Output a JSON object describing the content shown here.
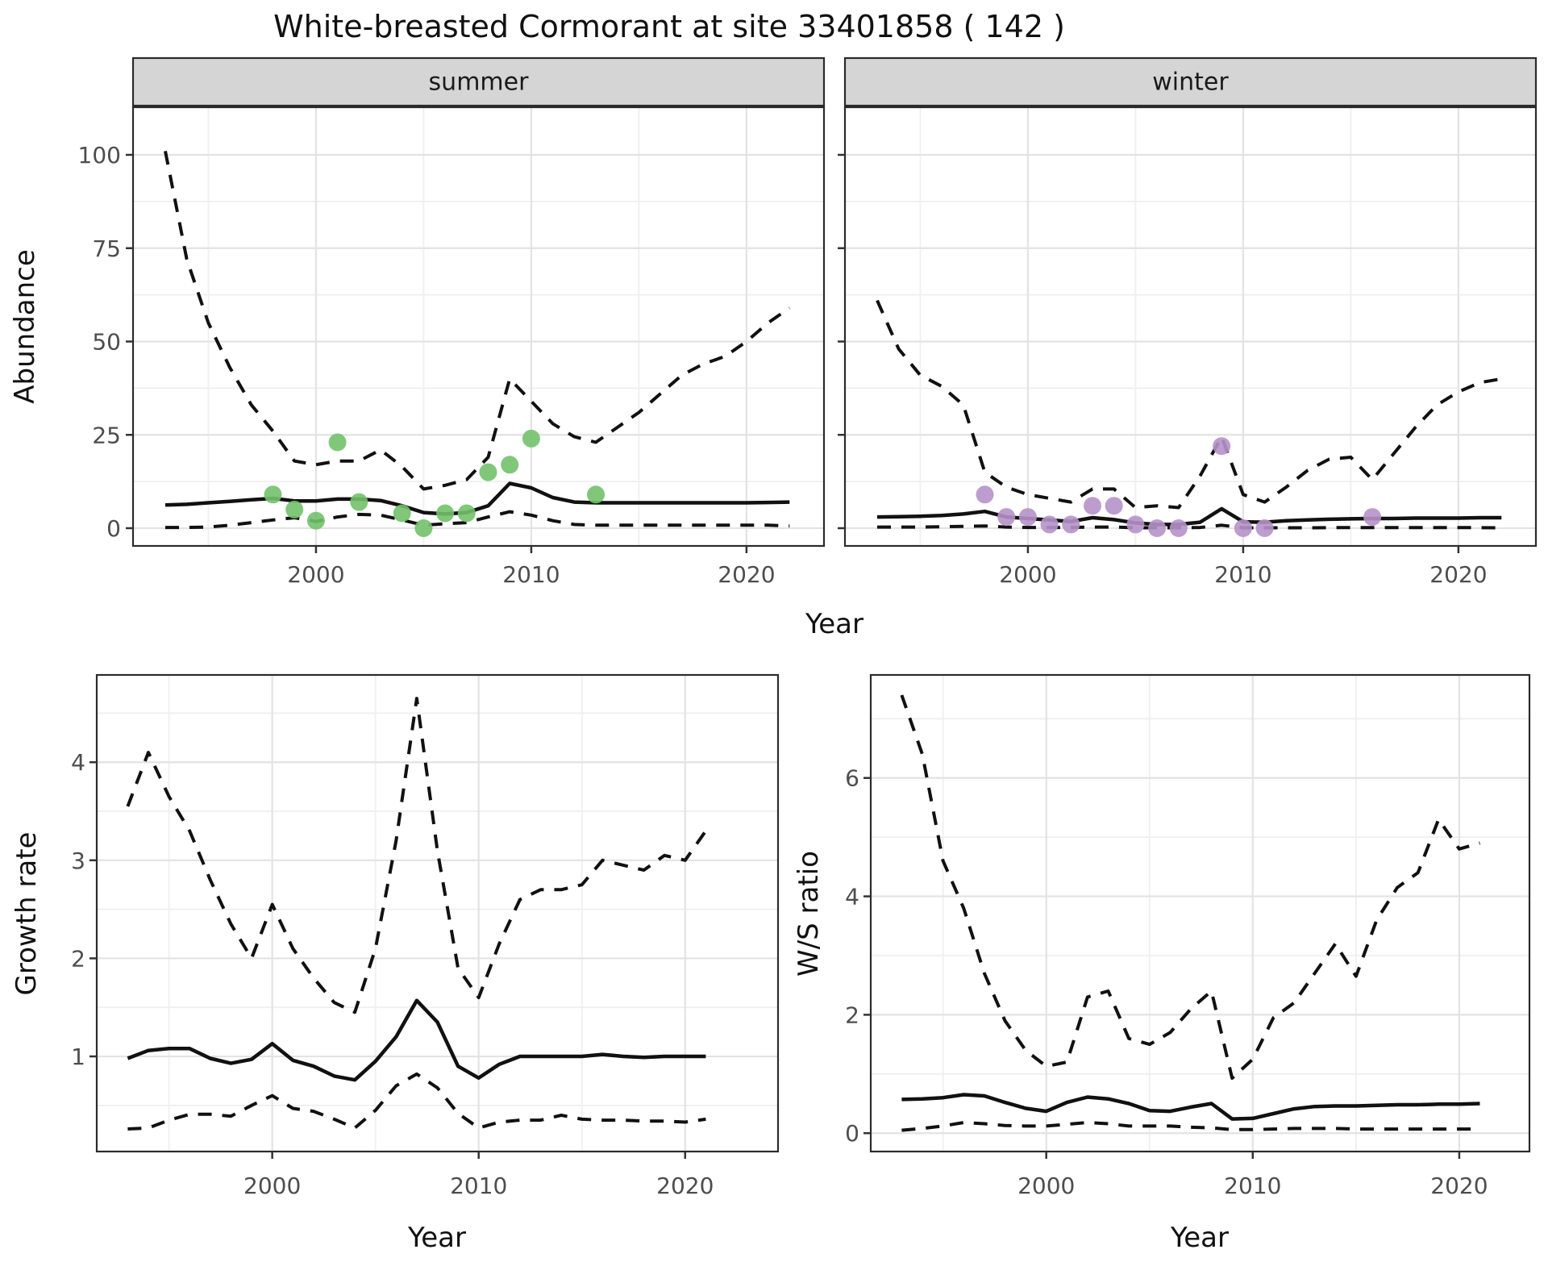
{
  "title": "White-breasted Cormorant at site 33401858 ( 142 )",
  "colors": {
    "summer_point": "#72c16c",
    "winter_point": "#b592c9",
    "line": "#111111",
    "strip_bg": "#d5d5d5",
    "panel_border": "#2b2b2b",
    "grid_major": "#e3e3e3",
    "grid_minor": "#efefef",
    "tick_text": "#4d4d4d"
  },
  "axis_titles": [
    {
      "id": "abundance",
      "text": "Abundance"
    },
    {
      "id": "year-top",
      "text": "Year"
    },
    {
      "id": "growth-rate",
      "text": "Growth rate"
    },
    {
      "id": "year-bottom-left",
      "text": "Year"
    },
    {
      "id": "ws-ratio",
      "text": "W/S ratio"
    },
    {
      "id": "year-bottom-right",
      "text": "Year"
    }
  ],
  "chart_data": [
    {
      "id": "abundance-summer",
      "type": "line",
      "facet_label": "summer",
      "ylabel": "Abundance",
      "xlabel": "Year",
      "x_ticks": [
        2000,
        2010,
        2020
      ],
      "x_minor": [
        1995,
        2005,
        2015
      ],
      "y_ticks": [
        0,
        25,
        50,
        75,
        100
      ],
      "y_minor": [
        12.5,
        37.5,
        62.5,
        87.5
      ],
      "xlim": [
        1991.5,
        2023.6
      ],
      "ylim": [
        -4.75,
        112.75
      ],
      "grid": true,
      "legend": "none",
      "x": [
        1993,
        1994,
        1995,
        1996,
        1997,
        1998,
        1999,
        2000,
        2001,
        2002,
        2003,
        2004,
        2005,
        2006,
        2007,
        2008,
        2009,
        2010,
        2011,
        2012,
        2013,
        2014,
        2015,
        2016,
        2017,
        2018,
        2019,
        2020,
        2021,
        2022
      ],
      "series": [
        {
          "name": "upper-ci",
          "style": "dashed",
          "values": [
            101,
            72,
            55,
            43,
            33,
            26,
            18,
            17,
            18,
            18,
            21,
            16.5,
            10.5,
            11.5,
            13,
            19,
            40,
            34,
            28,
            24.5,
            23,
            27,
            31,
            36,
            41,
            44,
            46,
            50,
            55,
            59
          ]
        },
        {
          "name": "median",
          "style": "solid",
          "values": [
            6.2,
            6.4,
            6.8,
            7.2,
            7.6,
            8,
            7.3,
            7.3,
            7.8,
            7.8,
            7.4,
            6,
            4.2,
            3.8,
            4.2,
            6,
            12,
            10.8,
            8.2,
            7,
            6.8,
            6.8,
            6.8,
            6.8,
            6.8,
            6.8,
            6.8,
            6.8,
            6.9,
            7
          ]
        },
        {
          "name": "lower-ci",
          "style": "dashed",
          "values": [
            0.2,
            0.2,
            0.3,
            0.8,
            1.5,
            2.2,
            2.8,
            1.8,
            3,
            3.7,
            3.5,
            2.2,
            0.8,
            1.2,
            1.5,
            3,
            4.4,
            3.5,
            2,
            1,
            0.8,
            0.8,
            0.8,
            0.8,
            0.8,
            0.8,
            0.8,
            0.8,
            0.8,
            0.6
          ]
        }
      ],
      "points": {
        "color_key": "summer_point",
        "data": [
          [
            1998,
            9
          ],
          [
            1999,
            5
          ],
          [
            2000,
            2
          ],
          [
            2001,
            23
          ],
          [
            2002,
            7
          ],
          [
            2004,
            4
          ],
          [
            2005,
            0
          ],
          [
            2006,
            4
          ],
          [
            2007,
            4
          ],
          [
            2008,
            15
          ],
          [
            2009,
            17
          ],
          [
            2010,
            24
          ],
          [
            2013,
            9
          ]
        ]
      }
    },
    {
      "id": "abundance-winter",
      "type": "line",
      "facet_label": "winter",
      "ylabel": "Abundance",
      "xlabel": "Year",
      "x_ticks": [
        2000,
        2010,
        2020
      ],
      "x_minor": [
        1995,
        2005,
        2015
      ],
      "y_ticks": [
        0,
        25,
        50,
        75,
        100
      ],
      "y_minor": [
        12.5,
        37.5,
        62.5,
        87.5
      ],
      "xlim": [
        1991.5,
        2023.6
      ],
      "ylim": [
        -4.75,
        112.75
      ],
      "grid": true,
      "legend": "none",
      "x": [
        1993,
        1994,
        1995,
        1996,
        1997,
        1998,
        1999,
        2000,
        2001,
        2002,
        2003,
        2004,
        2005,
        2006,
        2007,
        2008,
        2009,
        2010,
        2011,
        2012,
        2013,
        2014,
        2015,
        2016,
        2017,
        2018,
        2019,
        2020,
        2021,
        2022
      ],
      "series": [
        {
          "name": "upper-ci",
          "style": "dashed",
          "values": [
            61,
            48,
            41,
            38,
            33,
            15,
            11,
            9,
            8,
            7,
            10.5,
            10.5,
            5.5,
            6,
            5.5,
            14,
            24.5,
            9,
            7,
            11,
            15.5,
            18.5,
            19,
            13,
            20,
            27,
            33,
            36.5,
            39,
            40
          ]
        },
        {
          "name": "median",
          "style": "solid",
          "values": [
            3,
            3.1,
            3.2,
            3.4,
            3.8,
            4.5,
            3,
            2.6,
            2.2,
            1.8,
            2.8,
            2.3,
            1.4,
            1,
            1,
            1.6,
            5.2,
            1.7,
            1.6,
            2,
            2.2,
            2.4,
            2.5,
            2.6,
            2.6,
            2.7,
            2.7,
            2.7,
            2.8,
            2.8
          ]
        },
        {
          "name": "lower-ci",
          "style": "dashed",
          "values": [
            0.3,
            0.3,
            0.3,
            0.4,
            0.5,
            0.6,
            0.3,
            0.2,
            0.2,
            0.2,
            0.3,
            0.3,
            0.1,
            0.1,
            0.1,
            0.2,
            0.8,
            0.1,
            0.1,
            0.1,
            0.1,
            0.15,
            0.15,
            0.15,
            0.15,
            0.15,
            0.15,
            0.15,
            0.15,
            0.1
          ]
        }
      ],
      "points": {
        "color_key": "winter_point",
        "data": [
          [
            1998,
            9
          ],
          [
            1999,
            3
          ],
          [
            2000,
            3
          ],
          [
            2001,
            1
          ],
          [
            2002,
            1
          ],
          [
            2003,
            6
          ],
          [
            2004,
            6
          ],
          [
            2005,
            1
          ],
          [
            2006,
            0
          ],
          [
            2007,
            0
          ],
          [
            2009,
            22
          ],
          [
            2010,
            0
          ],
          [
            2011,
            0
          ],
          [
            2016,
            3
          ]
        ]
      }
    },
    {
      "id": "growth-rate",
      "type": "line",
      "facet_label": null,
      "ylabel": "Growth rate",
      "xlabel": "Year",
      "x_ticks": [
        2000,
        2010,
        2020
      ],
      "x_minor": [
        1995,
        2005,
        2015
      ],
      "y_ticks": [
        1,
        2,
        3,
        4
      ],
      "y_minor": [
        0.5,
        1.5,
        2.5,
        3.5,
        4.5
      ],
      "xlim": [
        1991.5,
        2024.5
      ],
      "ylim": [
        0.03,
        4.89
      ],
      "grid": true,
      "legend": "none",
      "x": [
        1993,
        1994,
        1995,
        1996,
        1997,
        1998,
        1999,
        2000,
        2001,
        2002,
        2003,
        2004,
        2005,
        2006,
        2007,
        2008,
        2009,
        2010,
        2011,
        2012,
        2013,
        2014,
        2015,
        2016,
        2017,
        2018,
        2019,
        2020,
        2021
      ],
      "series": [
        {
          "name": "upper-ci",
          "style": "dashed",
          "values": [
            3.55,
            4.1,
            3.65,
            3.3,
            2.8,
            2.35,
            2.0,
            2.55,
            2.1,
            1.8,
            1.55,
            1.45,
            2.1,
            3.2,
            4.65,
            3.1,
            1.9,
            1.6,
            2.15,
            2.6,
            2.7,
            2.7,
            2.75,
            3.0,
            2.95,
            2.9,
            3.05,
            3.0,
            3.3
          ]
        },
        {
          "name": "median",
          "style": "solid",
          "values": [
            0.98,
            1.06,
            1.08,
            1.08,
            0.98,
            0.93,
            0.97,
            1.13,
            0.96,
            0.9,
            0.8,
            0.76,
            0.95,
            1.2,
            1.57,
            1.35,
            0.9,
            0.78,
            0.92,
            1.0,
            1.0,
            1.0,
            1.0,
            1.02,
            1.0,
            0.99,
            1.0,
            1.0,
            1.0
          ]
        },
        {
          "name": "lower-ci",
          "style": "dashed",
          "values": [
            0.26,
            0.27,
            0.35,
            0.41,
            0.41,
            0.39,
            0.5,
            0.6,
            0.47,
            0.44,
            0.36,
            0.27,
            0.45,
            0.7,
            0.82,
            0.68,
            0.42,
            0.27,
            0.33,
            0.35,
            0.35,
            0.4,
            0.36,
            0.35,
            0.35,
            0.34,
            0.34,
            0.33,
            0.36
          ]
        }
      ],
      "points": null
    },
    {
      "id": "ws-ratio",
      "type": "line",
      "facet_label": null,
      "ylabel": "W/S ratio",
      "xlabel": "Year",
      "x_ticks": [
        2000,
        2010,
        2020
      ],
      "x_minor": [
        1995,
        2005,
        2015
      ],
      "y_ticks": [
        0,
        2,
        4,
        6
      ],
      "y_minor": [
        1,
        3,
        5,
        7
      ],
      "xlim": [
        1991.5,
        2023.4
      ],
      "ylim": [
        -0.31,
        7.74
      ],
      "grid": true,
      "legend": "none",
      "x": [
        1993,
        1994,
        1995,
        1996,
        1997,
        1998,
        1999,
        2000,
        2001,
        2002,
        2003,
        2004,
        2005,
        2006,
        2007,
        2008,
        2009,
        2010,
        2011,
        2012,
        2013,
        2014,
        2015,
        2016,
        2017,
        2018,
        2019,
        2020,
        2021
      ],
      "series": [
        {
          "name": "upper-ci",
          "style": "dashed",
          "values": [
            7.4,
            6.4,
            4.6,
            3.8,
            2.7,
            1.9,
            1.4,
            1.13,
            1.2,
            2.3,
            2.4,
            1.6,
            1.5,
            1.7,
            2.1,
            2.4,
            0.93,
            1.25,
            1.95,
            2.2,
            2.7,
            3.2,
            2.65,
            3.6,
            4.15,
            4.4,
            5.3,
            4.8,
            4.9
          ]
        },
        {
          "name": "median",
          "style": "solid",
          "values": [
            0.57,
            0.58,
            0.6,
            0.65,
            0.63,
            0.52,
            0.42,
            0.37,
            0.52,
            0.61,
            0.58,
            0.5,
            0.38,
            0.37,
            0.44,
            0.5,
            0.24,
            0.25,
            0.33,
            0.41,
            0.45,
            0.46,
            0.46,
            0.47,
            0.48,
            0.48,
            0.49,
            0.49,
            0.5
          ]
        },
        {
          "name": "lower-ci",
          "style": "dashed",
          "values": [
            0.05,
            0.08,
            0.12,
            0.18,
            0.16,
            0.13,
            0.12,
            0.12,
            0.15,
            0.18,
            0.16,
            0.12,
            0.12,
            0.12,
            0.1,
            0.09,
            0.06,
            0.06,
            0.07,
            0.08,
            0.08,
            0.08,
            0.07,
            0.07,
            0.07,
            0.07,
            0.07,
            0.07,
            0.07
          ]
        }
      ],
      "points": null
    }
  ]
}
